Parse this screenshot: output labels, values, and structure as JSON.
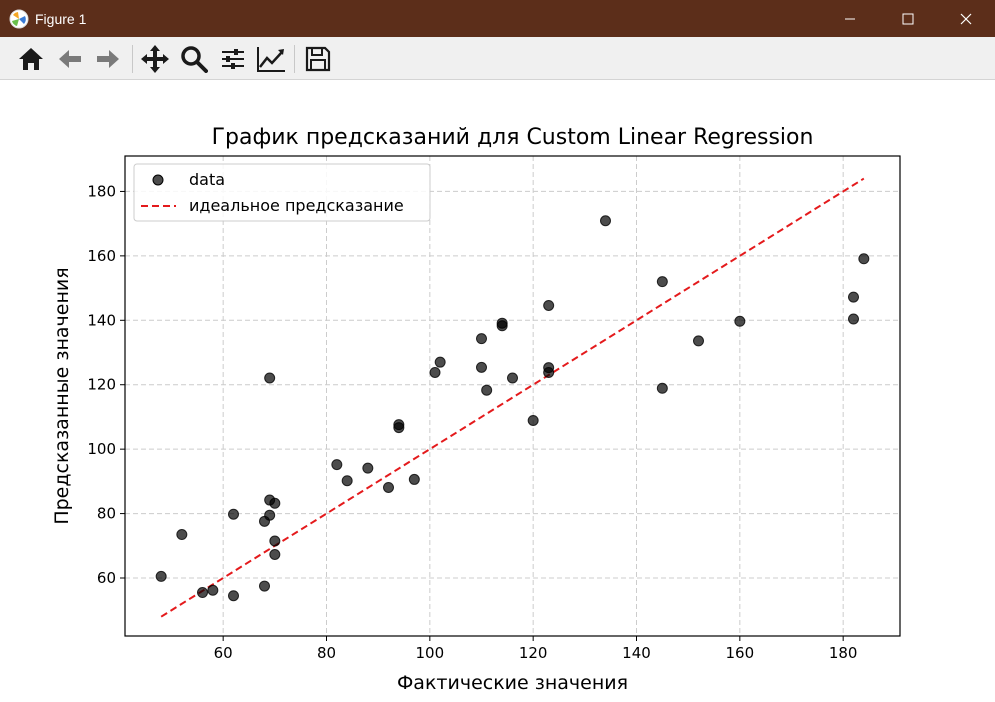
{
  "window": {
    "title": "Figure 1"
  },
  "toolbar": {
    "buttons": [
      {
        "name": "home-icon"
      },
      {
        "name": "back-arrow-icon"
      },
      {
        "name": "forward-arrow-icon"
      },
      {
        "name": "pan-icon"
      },
      {
        "name": "zoom-icon"
      },
      {
        "name": "configure-subplots-icon"
      },
      {
        "name": "edit-axis-icon"
      },
      {
        "name": "save-icon"
      }
    ]
  },
  "colors": {
    "titlebar": "#5c2e1a",
    "points": "#000000",
    "ideal_line": "#e41a1c",
    "grid": "#cccccc"
  },
  "chart_data": {
    "type": "scatter",
    "title": "График предсказаний для Custom Linear Regression",
    "xlabel": "Фактические значения",
    "ylabel": "Предсказанные значения",
    "xlim": [
      41,
      191
    ],
    "ylim": [
      42,
      191
    ],
    "xticks": [
      60,
      80,
      100,
      120,
      140,
      160,
      180
    ],
    "yticks": [
      60,
      80,
      100,
      120,
      140,
      160,
      180
    ],
    "grid": true,
    "legend_position": "top-left",
    "series": [
      {
        "name": "data",
        "kind": "points",
        "points": [
          [
            48,
            60.5
          ],
          [
            52,
            73.5
          ],
          [
            56,
            55.5
          ],
          [
            58,
            56.2
          ],
          [
            62,
            54.5
          ],
          [
            62,
            79.8
          ],
          [
            68,
            57.5
          ],
          [
            68,
            77.6
          ],
          [
            69,
            79.5
          ],
          [
            69,
            84.2
          ],
          [
            69,
            122.1
          ],
          [
            70,
            83.2
          ],
          [
            70,
            71.5
          ],
          [
            70,
            67.3
          ],
          [
            82,
            95.2
          ],
          [
            84,
            90.2
          ],
          [
            88,
            94.1
          ],
          [
            92,
            88.1
          ],
          [
            94,
            107.6
          ],
          [
            94,
            106.7
          ],
          [
            97,
            90.6
          ],
          [
            101,
            123.8
          ],
          [
            102,
            127.0
          ],
          [
            110,
            134.3
          ],
          [
            110,
            125.4
          ],
          [
            111,
            118.3
          ],
          [
            114,
            139.1
          ],
          [
            114,
            138.3
          ],
          [
            116,
            122.1
          ],
          [
            120,
            108.9
          ],
          [
            123,
            144.6
          ],
          [
            123,
            125.3
          ],
          [
            123,
            123.8
          ],
          [
            134,
            170.9
          ],
          [
            145,
            152.0
          ],
          [
            145,
            118.9
          ],
          [
            152,
            133.6
          ],
          [
            160,
            139.7
          ],
          [
            182,
            147.2
          ],
          [
            182,
            140.4
          ],
          [
            184,
            159.1
          ]
        ]
      },
      {
        "name": "идеальное предсказание",
        "kind": "dashed-line",
        "points": [
          [
            48,
            48
          ],
          [
            184,
            184
          ]
        ]
      }
    ]
  }
}
